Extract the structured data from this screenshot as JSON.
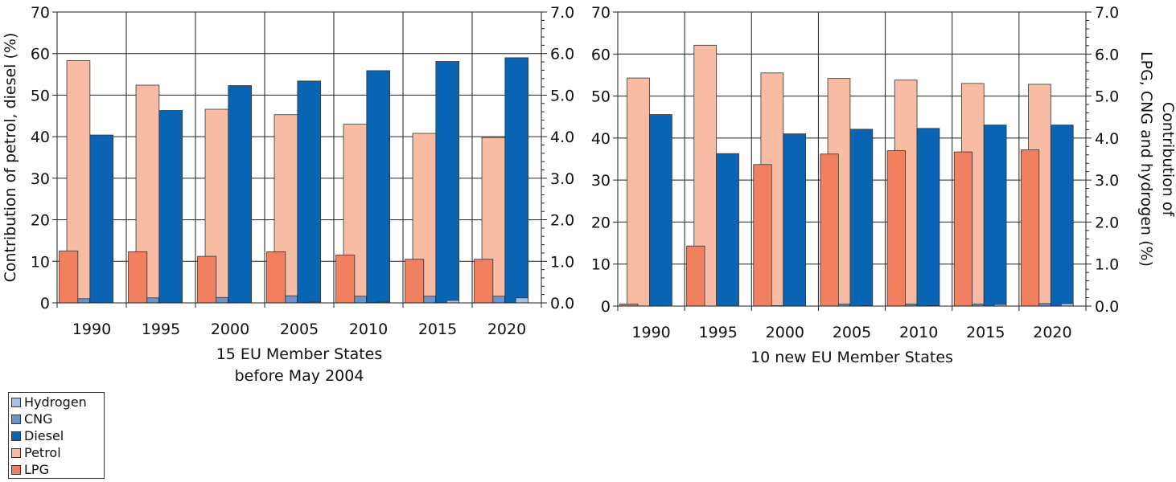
{
  "legend": [
    {
      "name": "Hydrogen",
      "color": "#a9c1e6"
    },
    {
      "name": "CNG",
      "color": "#6b94cc"
    },
    {
      "name": "Diesel",
      "color": "#0a64b4"
    },
    {
      "name": "Petrol",
      "color": "#f8bca5"
    },
    {
      "name": "LPG",
      "color": "#f08060"
    }
  ],
  "chart_data": [
    {
      "type": "bar",
      "xlabel": [
        "15 EU Member States",
        "before May 2004"
      ],
      "ylabel_left": "Contribution of petrol, diesel (%)",
      "ylabel_right": "",
      "categories": [
        "1990",
        "1995",
        "2000",
        "2005",
        "2010",
        "2015",
        "2020"
      ],
      "ylim_left": [
        0,
        70
      ],
      "yticks_left": [
        "0",
        "10",
        "20",
        "30",
        "40",
        "50",
        "60",
        "70"
      ],
      "ylim_right": [
        0,
        7
      ],
      "yticks_right": [
        "0.0",
        "1.0",
        "2.0",
        "3.0",
        "4.0",
        "5.0",
        "6.0",
        "7.0"
      ],
      "grid": true,
      "series": [
        {
          "name": "LPG",
          "axis": "right",
          "values": [
            1.25,
            1.23,
            1.12,
            1.23,
            1.15,
            1.05,
            1.05
          ]
        },
        {
          "name": "Petrol",
          "axis": "left",
          "values": [
            58.3,
            52.4,
            46.6,
            45.3,
            43.0,
            40.8,
            39.8
          ]
        },
        {
          "name": "CNG",
          "axis": "right",
          "values": [
            0.1,
            0.12,
            0.13,
            0.17,
            0.16,
            0.16,
            0.16
          ]
        },
        {
          "name": "Diesel",
          "axis": "left",
          "values": [
            40.4,
            46.3,
            52.3,
            53.4,
            55.9,
            58.1,
            59.0
          ]
        },
        {
          "name": "Hydrogen",
          "axis": "right",
          "values": [
            0.0,
            0.0,
            0.0,
            0.02,
            0.02,
            0.06,
            0.12
          ]
        }
      ]
    },
    {
      "type": "bar",
      "xlabel": [
        "10 new EU Member States"
      ],
      "ylabel_left": "",
      "ylabel_right": [
        "Contribution of",
        "LPG, CNG and hydrogen (%)"
      ],
      "categories": [
        "1990",
        "1995",
        "2000",
        "2005",
        "2010",
        "2015",
        "2020"
      ],
      "ylim_left": [
        0,
        70
      ],
      "yticks_left": [
        "0",
        "10",
        "20",
        "30",
        "40",
        "50",
        "60",
        "70"
      ],
      "ylim_right": [
        0,
        7
      ],
      "yticks_right": [
        "0.0",
        "1.0",
        "2.0",
        "3.0",
        "4.0",
        "5.0",
        "6.0",
        "7.0"
      ],
      "grid": true,
      "series": [
        {
          "name": "LPG",
          "axis": "right",
          "values": [
            0.05,
            1.43,
            3.37,
            3.62,
            3.7,
            3.67,
            3.72
          ]
        },
        {
          "name": "Petrol",
          "axis": "left",
          "values": [
            54.3,
            62.1,
            55.5,
            54.2,
            53.8,
            53.0,
            52.8
          ]
        },
        {
          "name": "CNG",
          "axis": "right",
          "values": [
            0.0,
            0.0,
            0.01,
            0.05,
            0.05,
            0.05,
            0.06
          ]
        },
        {
          "name": "Diesel",
          "axis": "left",
          "values": [
            45.6,
            36.3,
            41.0,
            42.1,
            42.3,
            43.1,
            43.1
          ]
        },
        {
          "name": "Hydrogen",
          "axis": "right",
          "values": [
            0.0,
            0.0,
            0.0,
            0.01,
            0.01,
            0.04,
            0.06
          ]
        }
      ]
    }
  ]
}
